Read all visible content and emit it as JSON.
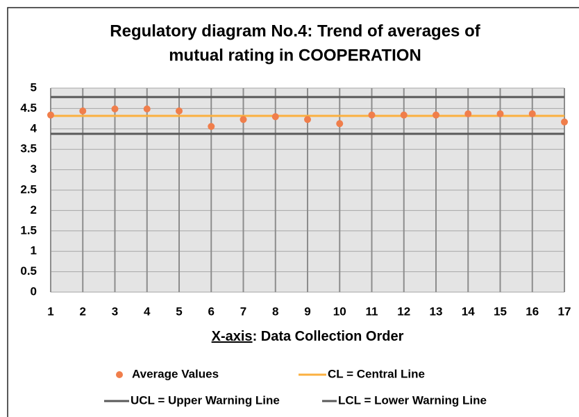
{
  "chart_data": {
    "type": "scatter",
    "title": [
      "Regulatory diagram No.4: Trend of averages of",
      "mutual rating in COOPERATION"
    ],
    "x_label": {
      "underlined": "X-axis",
      "rest": ": Data Collection Order"
    },
    "x": [
      1,
      2,
      3,
      4,
      5,
      6,
      7,
      8,
      9,
      10,
      11,
      12,
      13,
      14,
      15,
      16,
      17
    ],
    "series": [
      {
        "name": "Average Values",
        "color": "#f07e4b",
        "values": [
          4.34,
          4.44,
          4.49,
          4.49,
          4.44,
          4.06,
          4.23,
          4.3,
          4.23,
          4.13,
          4.34,
          4.34,
          4.34,
          4.37,
          4.37,
          4.37,
          4.17
        ]
      }
    ],
    "lines": [
      {
        "name": "CL = Central Line",
        "color": "#fbb040",
        "value": 4.32
      },
      {
        "name": "UCL = Upper Warning Line",
        "color": "#595959",
        "value": 4.78
      },
      {
        "name": "LCL = Lower Warning Line",
        "color": "#595959",
        "value": 3.88
      }
    ],
    "xlim": [
      1,
      17
    ],
    "xticks": [
      1,
      2,
      3,
      4,
      5,
      6,
      7,
      8,
      9,
      10,
      11,
      12,
      13,
      14,
      15,
      16,
      17
    ],
    "ylim": [
      0,
      5
    ],
    "yticks": [
      0,
      0.5,
      1,
      1.5,
      2,
      2.5,
      3,
      3.5,
      4,
      4.5,
      5
    ],
    "grid": true
  }
}
